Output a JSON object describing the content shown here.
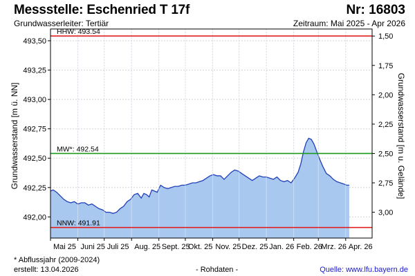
{
  "header": {
    "title": "Messstelle: Eschenried T 17f",
    "subtitle": "Grundwasserleiter: Tertiär",
    "number": "Nr: 16803",
    "period": "Zeitraum: Mai 2025 - Apr 2026"
  },
  "footer": {
    "footnote": "* Abflussjahr (2009-2024)",
    "created": "erstellt:  13.04.2026",
    "rawdata": "- Rohdaten -",
    "source": "Quelle: www.lfu.bayern.de"
  },
  "colors": {
    "area_fill": "#a9c8ef",
    "line": "#1f3fb8",
    "hhw_line": "#e02020",
    "nnw_line": "#e02020",
    "mw_line": "#1a9a1a",
    "grid": "#d0d0d0"
  },
  "chart_data": {
    "type": "area",
    "ylabel": "Grundwasserstand [m ü. NN]",
    "ylabel_right": "Grundwasserstand [m u. Gelände]",
    "ylim": [
      491.82,
      493.6
    ],
    "yticks": [
      492.0,
      492.25,
      492.5,
      492.75,
      493.0,
      493.25,
      493.5
    ],
    "ytick_labels": [
      "492,00",
      "492,25",
      "492,50",
      "492,75",
      "493,00",
      "493,25",
      "493,50"
    ],
    "right_ticks": [
      1.5,
      1.75,
      2.0,
      2.25,
      2.5,
      2.75,
      3.0
    ],
    "right_tick_labels": [
      "1,50",
      "1,75",
      "2,00",
      "2,25",
      "2,50",
      "2,75",
      "3,00"
    ],
    "right_axis_offset": 495.04,
    "xlim": [
      "2025-05-01",
      "2026-05-01"
    ],
    "xticks": [
      {
        "date": "2025-05-01",
        "label": "Mai 25"
      },
      {
        "date": "2025-06-01",
        "label": "Juni 25"
      },
      {
        "date": "2025-07-01",
        "label": "Juli 25"
      },
      {
        "date": "2025-08-01",
        "label": "Aug. 25"
      },
      {
        "date": "2025-09-01",
        "label": "Sept. 25"
      },
      {
        "date": "2025-10-01",
        "label": "Okt. 25"
      },
      {
        "date": "2025-11-01",
        "label": "Nov. 25"
      },
      {
        "date": "2025-12-01",
        "label": "Dez. 25"
      },
      {
        "date": "2026-01-01",
        "label": "Jan. 26"
      },
      {
        "date": "2026-02-01",
        "label": "Feb. 26"
      },
      {
        "date": "2026-03-01",
        "label": "Mrz. 26"
      },
      {
        "date": "2026-04-01",
        "label": "Apr. 26"
      }
    ],
    "reference_lines": [
      {
        "label": "HHW: 493.54",
        "value": 493.54,
        "color": "#e02020"
      },
      {
        "label": "MW*: 492.54",
        "value": 492.54,
        "color": "#1a9a1a"
      },
      {
        "label": "NNW: 491.91",
        "value": 491.91,
        "color": "#e02020"
      }
    ],
    "series": [
      {
        "points": [
          [
            "2025-05-01",
            492.22
          ],
          [
            "2025-05-04",
            492.23
          ],
          [
            "2025-05-08",
            492.21
          ],
          [
            "2025-05-12",
            492.18
          ],
          [
            "2025-05-16",
            492.15
          ],
          [
            "2025-05-20",
            492.13
          ],
          [
            "2025-05-24",
            492.12
          ],
          [
            "2025-05-28",
            492.13
          ],
          [
            "2025-06-01",
            492.11
          ],
          [
            "2025-06-05",
            492.12
          ],
          [
            "2025-06-09",
            492.12
          ],
          [
            "2025-06-13",
            492.1
          ],
          [
            "2025-06-17",
            492.11
          ],
          [
            "2025-06-21",
            492.09
          ],
          [
            "2025-06-25",
            492.07
          ],
          [
            "2025-06-29",
            492.06
          ],
          [
            "2025-07-03",
            492.04
          ],
          [
            "2025-07-07",
            492.04
          ],
          [
            "2025-07-11",
            492.03
          ],
          [
            "2025-07-15",
            492.04
          ],
          [
            "2025-07-19",
            492.07
          ],
          [
            "2025-07-23",
            492.09
          ],
          [
            "2025-07-27",
            492.13
          ],
          [
            "2025-07-31",
            492.15
          ],
          [
            "2025-08-04",
            492.19
          ],
          [
            "2025-08-08",
            492.2
          ],
          [
            "2025-08-12",
            492.16
          ],
          [
            "2025-08-15",
            492.2
          ],
          [
            "2025-08-18",
            492.19
          ],
          [
            "2025-08-21",
            492.17
          ],
          [
            "2025-08-24",
            492.23
          ],
          [
            "2025-08-27",
            492.22
          ],
          [
            "2025-08-30",
            492.21
          ],
          [
            "2025-09-03",
            492.27
          ],
          [
            "2025-09-07",
            492.25
          ],
          [
            "2025-09-11",
            492.24
          ],
          [
            "2025-09-15",
            492.25
          ],
          [
            "2025-09-19",
            492.26
          ],
          [
            "2025-09-23",
            492.26
          ],
          [
            "2025-09-27",
            492.27
          ],
          [
            "2025-10-01",
            492.27
          ],
          [
            "2025-10-05",
            492.28
          ],
          [
            "2025-10-09",
            492.29
          ],
          [
            "2025-10-13",
            492.29
          ],
          [
            "2025-10-17",
            492.3
          ],
          [
            "2025-10-21",
            492.31
          ],
          [
            "2025-10-25",
            492.33
          ],
          [
            "2025-10-29",
            492.35
          ],
          [
            "2025-11-02",
            492.36
          ],
          [
            "2025-11-06",
            492.35
          ],
          [
            "2025-11-10",
            492.35
          ],
          [
            "2025-11-14",
            492.32
          ],
          [
            "2025-11-18",
            492.35
          ],
          [
            "2025-11-22",
            492.38
          ],
          [
            "2025-11-26",
            492.4
          ],
          [
            "2025-11-30",
            492.39
          ],
          [
            "2025-12-04",
            492.37
          ],
          [
            "2025-12-08",
            492.35
          ],
          [
            "2025-12-12",
            492.33
          ],
          [
            "2025-12-16",
            492.31
          ],
          [
            "2025-12-20",
            492.33
          ],
          [
            "2025-12-24",
            492.35
          ],
          [
            "2025-12-28",
            492.34
          ],
          [
            "2026-01-01",
            492.34
          ],
          [
            "2026-01-05",
            492.33
          ],
          [
            "2026-01-09",
            492.32
          ],
          [
            "2026-01-13",
            492.34
          ],
          [
            "2026-01-17",
            492.31
          ],
          [
            "2026-01-21",
            492.3
          ],
          [
            "2026-01-25",
            492.31
          ],
          [
            "2026-01-29",
            492.29
          ],
          [
            "2026-02-02",
            492.33
          ],
          [
            "2026-02-06",
            492.38
          ],
          [
            "2026-02-09",
            492.45
          ],
          [
            "2026-02-12",
            492.55
          ],
          [
            "2026-02-15",
            492.63
          ],
          [
            "2026-02-18",
            492.67
          ],
          [
            "2026-02-21",
            492.66
          ],
          [
            "2026-02-24",
            492.62
          ],
          [
            "2026-02-27",
            492.56
          ],
          [
            "2026-03-02",
            492.5
          ],
          [
            "2026-03-06",
            492.43
          ],
          [
            "2026-03-10",
            492.37
          ],
          [
            "2026-03-14",
            492.35
          ],
          [
            "2026-03-18",
            492.32
          ],
          [
            "2026-03-22",
            492.3
          ],
          [
            "2026-03-26",
            492.29
          ],
          [
            "2026-03-30",
            492.28
          ],
          [
            "2026-04-02",
            492.27
          ],
          [
            "2026-04-05",
            492.27
          ]
        ]
      }
    ]
  }
}
